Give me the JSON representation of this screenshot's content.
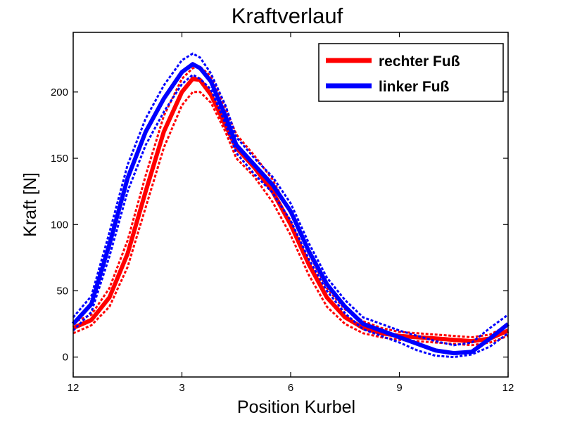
{
  "chart_data": {
    "type": "line",
    "title": "Kraftverlauf",
    "xlabel": "Position Kurbel",
    "ylabel": "Kraft [N]",
    "xlim": [
      0,
      12
    ],
    "ylim": [
      -15,
      245
    ],
    "x_ticks": [
      0,
      3,
      6,
      9,
      12
    ],
    "x_tick_labels": [
      "12",
      "3",
      "6",
      "9",
      "12"
    ],
    "y_ticks": [
      0,
      50,
      100,
      150,
      200
    ],
    "y_tick_labels": [
      "0",
      "50",
      "100",
      "150",
      "200"
    ],
    "grid": false,
    "legend_position": "top-right",
    "colors": {
      "right": "#ff0000",
      "left": "#0000ff"
    },
    "series": [
      {
        "name": "rechter Fuß",
        "color": "#ff0000",
        "x": [
          0,
          0.5,
          1.0,
          1.5,
          2.0,
          2.5,
          3.0,
          3.3,
          3.5,
          3.8,
          4.2,
          4.5,
          5.0,
          5.5,
          6.0,
          6.5,
          7.0,
          7.5,
          8.0,
          8.5,
          9.0,
          9.5,
          10.0,
          10.5,
          11.0,
          11.5,
          12.0
        ],
        "values": [
          22,
          28,
          45,
          78,
          125,
          170,
          200,
          210,
          209,
          198,
          175,
          158,
          143,
          125,
          100,
          70,
          45,
          30,
          22,
          18,
          16,
          15,
          14,
          13,
          12,
          14,
          20
        ],
        "upper": [
          26,
          32,
          52,
          88,
          137,
          182,
          210,
          218,
          219,
          212,
          188,
          168,
          152,
          134,
          108,
          78,
          52,
          36,
          27,
          22,
          19,
          18,
          17,
          16,
          15,
          17,
          24
        ],
        "lower": [
          18,
          24,
          38,
          68,
          113,
          158,
          190,
          200,
          200,
          192,
          170,
          150,
          136,
          117,
          92,
          62,
          38,
          25,
          18,
          15,
          13,
          12,
          11,
          10,
          9,
          11,
          16
        ]
      },
      {
        "name": "linker Fuß",
        "color": "#0000ff",
        "x": [
          0,
          0.5,
          1.0,
          1.5,
          2.0,
          2.5,
          3.0,
          3.3,
          3.5,
          3.8,
          4.2,
          4.5,
          5.0,
          5.5,
          6.0,
          6.5,
          7.0,
          7.5,
          8.0,
          8.5,
          9.0,
          9.5,
          10.0,
          10.5,
          11.0,
          11.5,
          12.0
        ],
        "values": [
          25,
          40,
          85,
          135,
          170,
          195,
          215,
          221,
          218,
          208,
          182,
          160,
          145,
          130,
          110,
          80,
          55,
          38,
          25,
          20,
          15,
          10,
          5,
          3,
          4,
          14,
          25
        ],
        "upper": [
          30,
          46,
          94,
          145,
          180,
          205,
          224,
          229,
          226,
          214,
          190,
          166,
          150,
          136,
          116,
          86,
          60,
          43,
          30,
          25,
          20,
          16,
          12,
          9,
          11,
          22,
          32
        ],
        "lower": [
          20,
          34,
          76,
          125,
          160,
          185,
          206,
          213,
          210,
          202,
          176,
          154,
          138,
          124,
          103,
          74,
          50,
          33,
          21,
          16,
          11,
          5,
          1,
          0,
          2,
          8,
          18
        ]
      }
    ]
  }
}
